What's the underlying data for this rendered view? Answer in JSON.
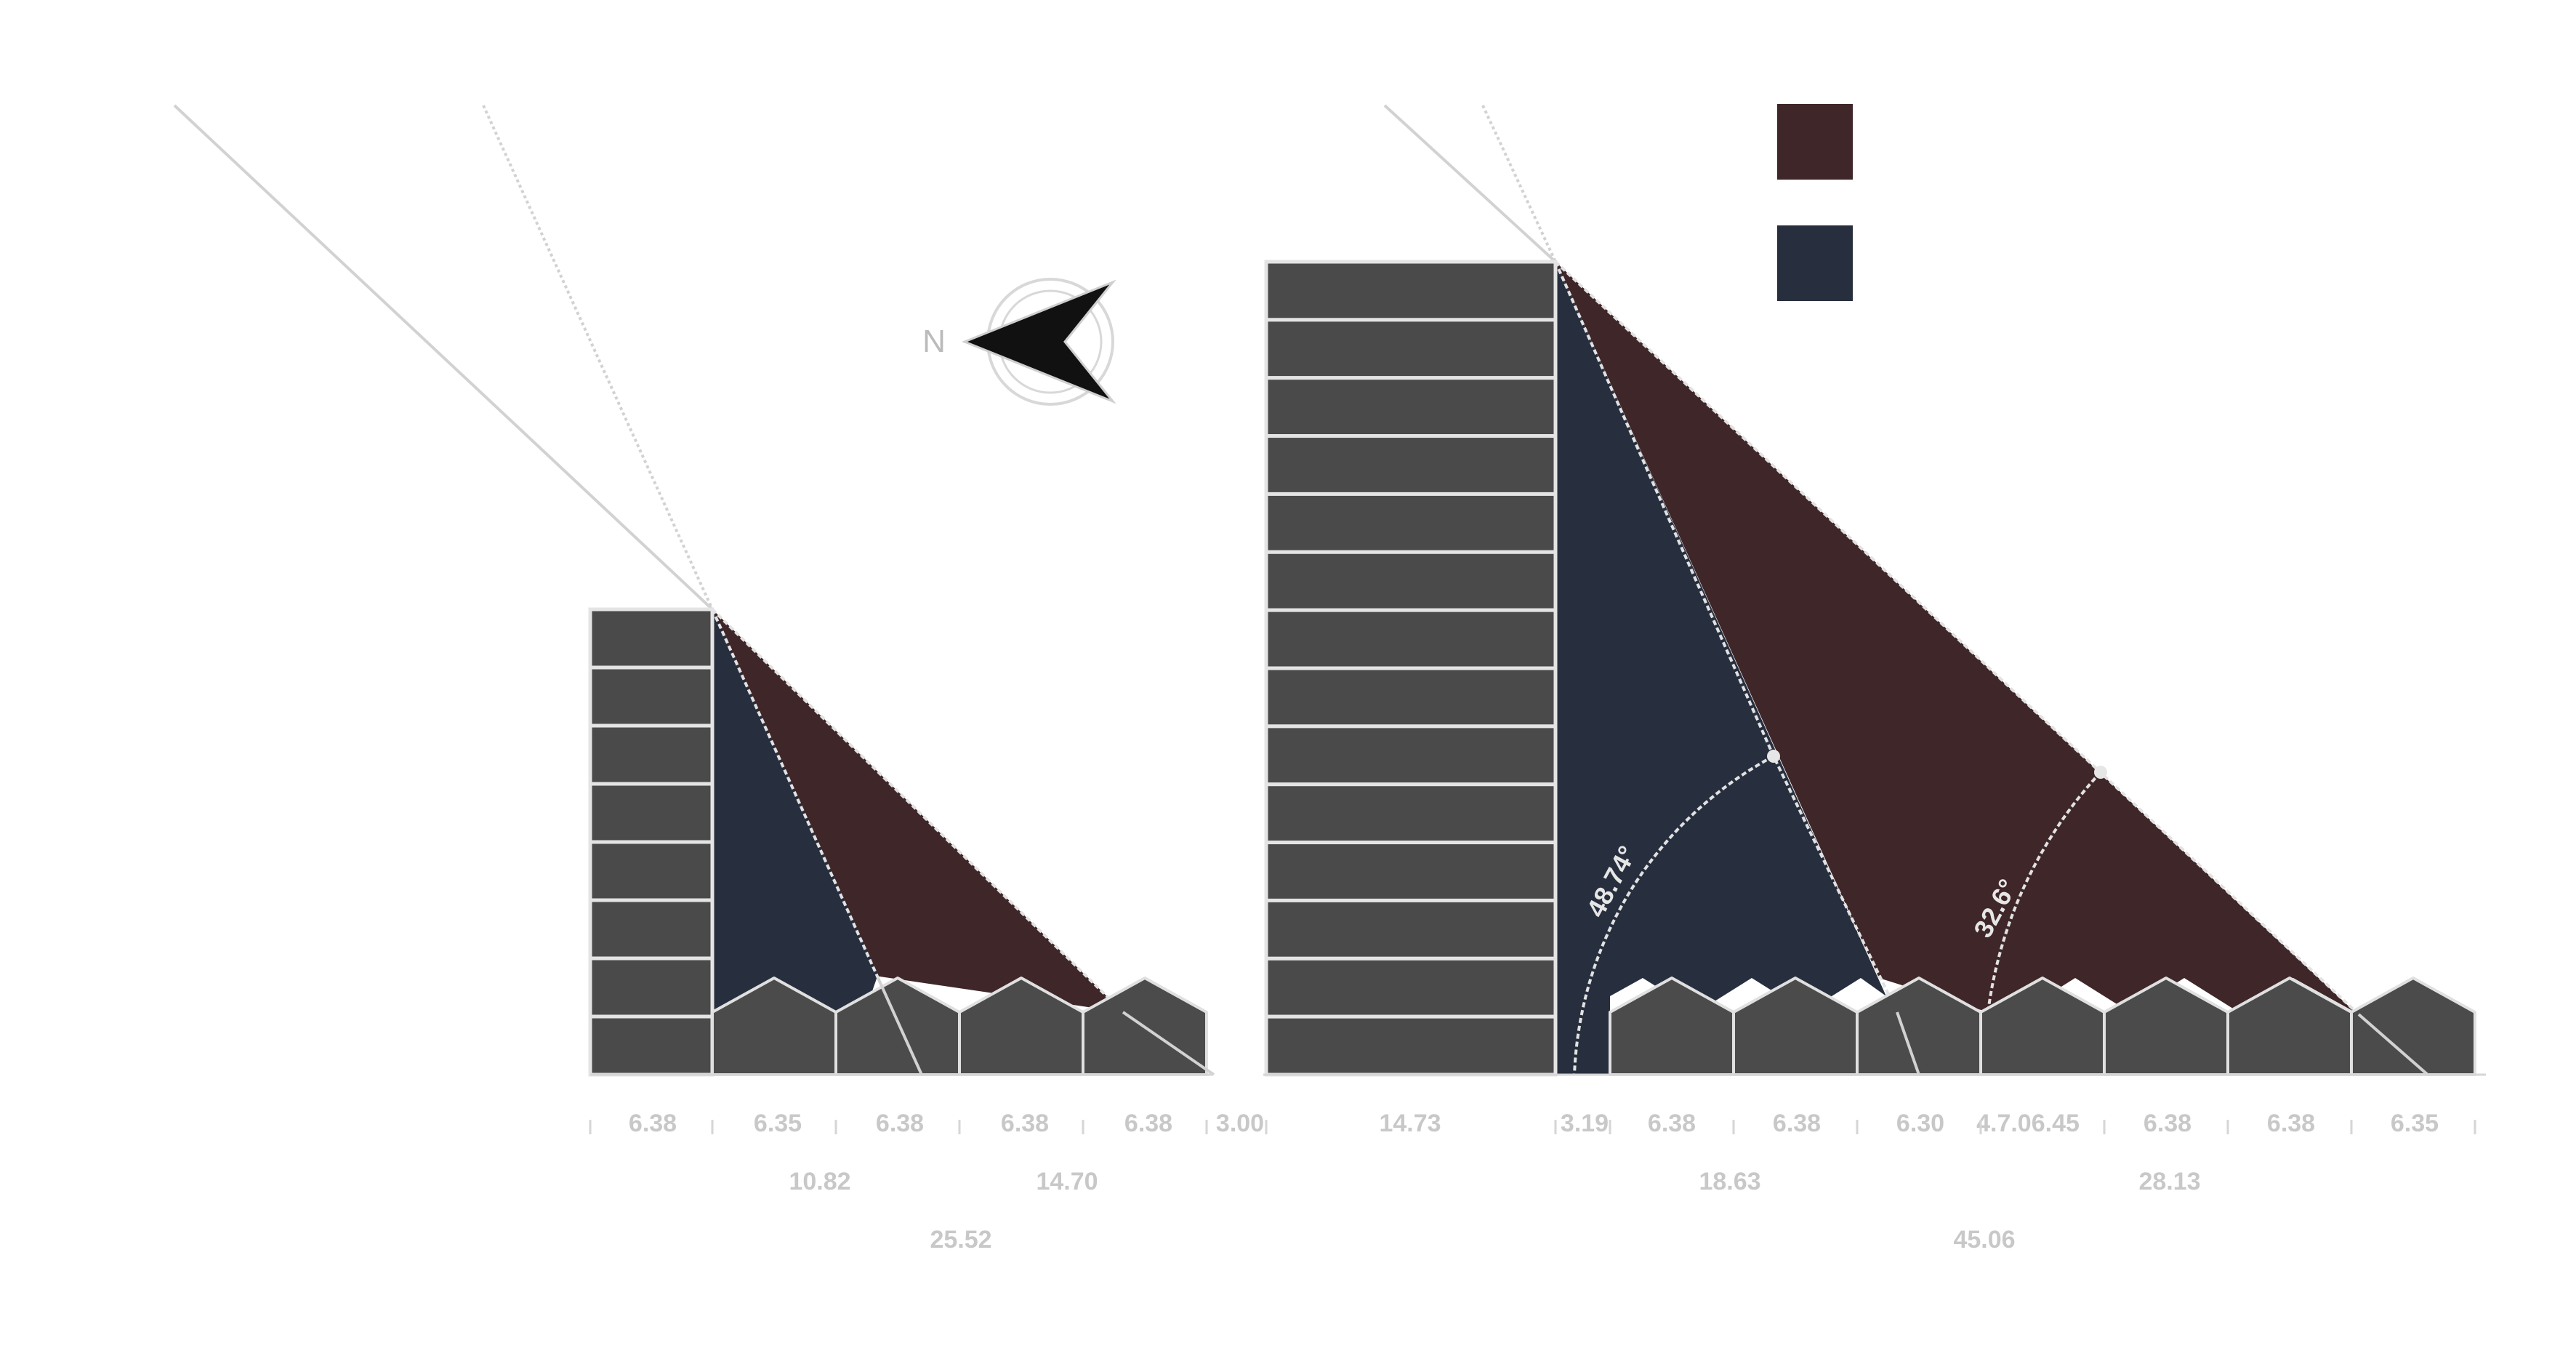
{
  "compass": {
    "label": "N",
    "icon": "north-arrow-icon"
  },
  "legend": {
    "colors": [
      "#3f2629",
      "#272f3f"
    ]
  },
  "colors": {
    "zone_dark_red": "#3f2629",
    "zone_navy": "#272f3f",
    "building": "#4a4a4a",
    "outline": "#e0e0e0"
  },
  "left_section": {
    "dims_row1": [
      "6.38",
      "6.35",
      "6.38",
      "6.38",
      "6.38",
      "3.00"
    ],
    "dims_row2": [
      "10.82",
      "14.70"
    ],
    "dims_row3": [
      "25.52"
    ]
  },
  "right_section": {
    "dims_row1": [
      "14.73",
      "3.19",
      "6.38",
      "6.38",
      "6.30",
      "4.7.06.45",
      "6.38",
      "6.38",
      "6.35"
    ],
    "dims_row2": [
      "18.63",
      "28.13"
    ],
    "dims_row3": [
      "45.06"
    ],
    "angles": [
      "48.74°",
      "32.6°"
    ]
  }
}
